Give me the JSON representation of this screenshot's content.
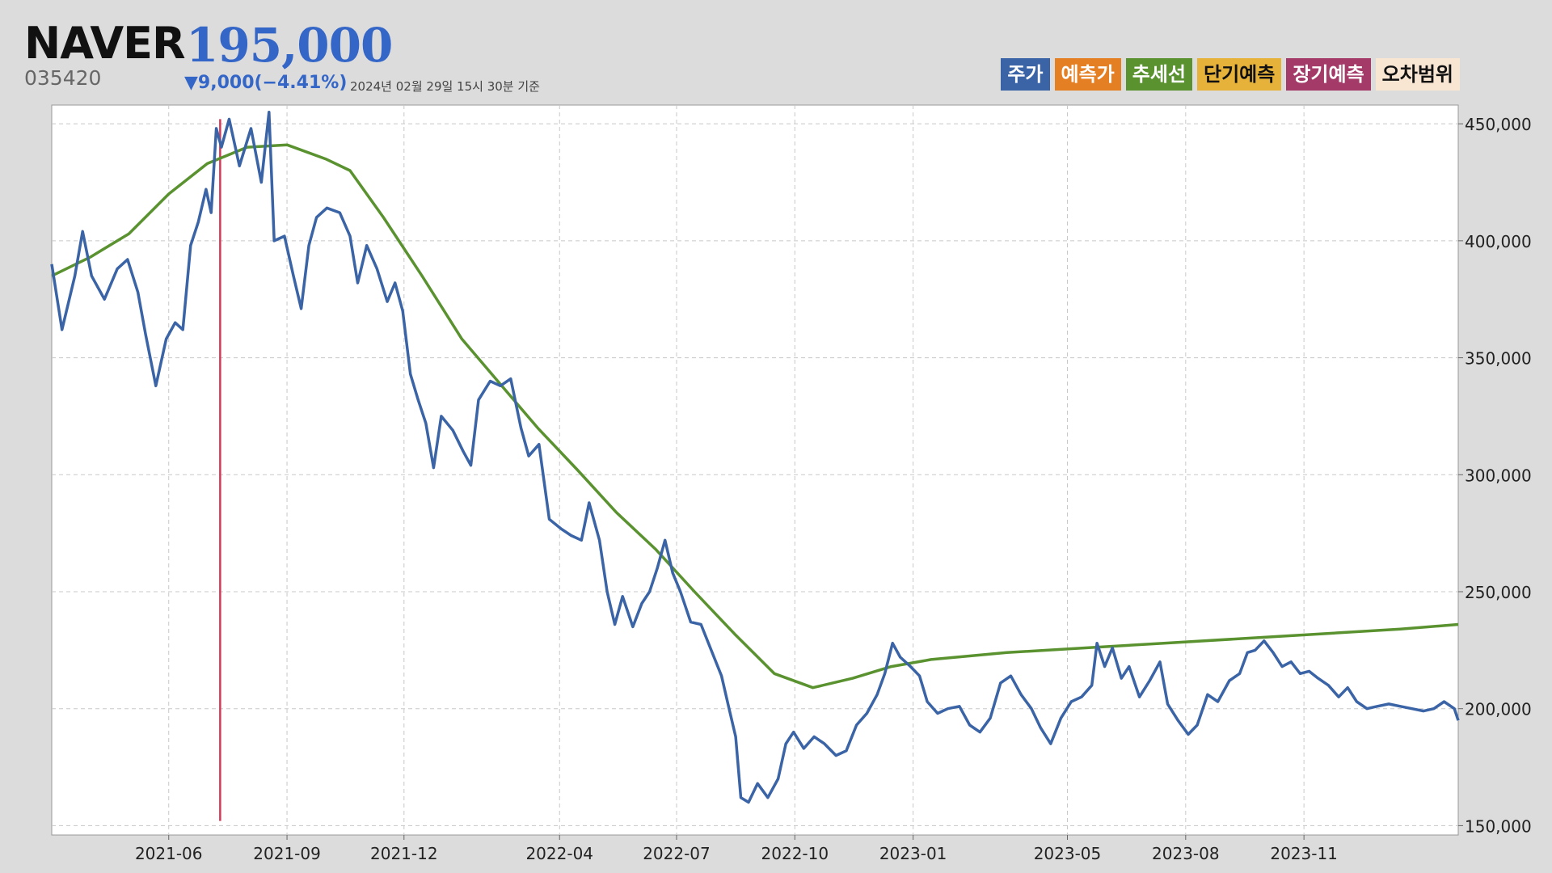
{
  "header": {
    "name": "NAVER",
    "price": "195,000",
    "code": "035420",
    "change": "▼9,000(−4.41%)",
    "timestamp": "2024년 02월 29일 15시 30분 기준"
  },
  "legend": [
    {
      "label": "주가",
      "color": "#3a64a6",
      "text_color": "#ffffff"
    },
    {
      "label": "예측가",
      "color": "#e57f24",
      "text_color": "#ffffff"
    },
    {
      "label": "추세선",
      "color": "#5a9230",
      "text_color": "#ffffff"
    },
    {
      "label": "단기예측",
      "color": "#e6b23a",
      "text_color": "#111111"
    },
    {
      "label": "장기예측",
      "color": "#a33a68",
      "text_color": "#ffffff"
    },
    {
      "label": "오차범위",
      "color": "#f8e6d3",
      "text_color": "#111111"
    }
  ],
  "chart_data": {
    "type": "line",
    "x_ticks": [
      "2021-06",
      "2021-09",
      "2021-12",
      "2022-04",
      "2022-07",
      "2022-10",
      "2023-01",
      "2023-05",
      "2023-08",
      "2023-11"
    ],
    "y_ticks": [
      "450,000",
      "400,000",
      "350,000",
      "300,000",
      "250,000",
      "200,000",
      "150,000"
    ],
    "ylim": [
      146000,
      458000
    ],
    "x_start": "2021-03-02",
    "x_end": "2024-02-29",
    "grid": true,
    "marker_line_date": "2021-07-11",
    "colors": {
      "price": "#3a64a6",
      "trend": "#5a9230",
      "marker": "#d23a5a"
    },
    "series": [
      {
        "name": "주가",
        "points": [
          [
            "2021-03-02",
            390000
          ],
          [
            "2021-03-10",
            362000
          ],
          [
            "2021-03-20",
            385000
          ],
          [
            "2021-03-26",
            404000
          ],
          [
            "2021-04-02",
            385000
          ],
          [
            "2021-04-12",
            375000
          ],
          [
            "2021-04-22",
            388000
          ],
          [
            "2021-04-30",
            392000
          ],
          [
            "2021-05-08",
            378000
          ],
          [
            "2021-05-14",
            360000
          ],
          [
            "2021-05-22",
            338000
          ],
          [
            "2021-05-30",
            358000
          ],
          [
            "2021-06-06",
            365000
          ],
          [
            "2021-06-12",
            362000
          ],
          [
            "2021-06-18",
            398000
          ],
          [
            "2021-06-24",
            408000
          ],
          [
            "2021-06-30",
            422000
          ],
          [
            "2021-07-04",
            412000
          ],
          [
            "2021-07-08",
            448000
          ],
          [
            "2021-07-12",
            440000
          ],
          [
            "2021-07-18",
            452000
          ],
          [
            "2021-07-26",
            432000
          ],
          [
            "2021-08-04",
            448000
          ],
          [
            "2021-08-12",
            425000
          ],
          [
            "2021-08-18",
            455000
          ],
          [
            "2021-08-22",
            400000
          ],
          [
            "2021-08-30",
            402000
          ],
          [
            "2021-09-06",
            385000
          ],
          [
            "2021-09-12",
            371000
          ],
          [
            "2021-09-18",
            398000
          ],
          [
            "2021-09-24",
            410000
          ],
          [
            "2021-10-02",
            414000
          ],
          [
            "2021-10-12",
            412000
          ],
          [
            "2021-10-20",
            402000
          ],
          [
            "2021-10-26",
            382000
          ],
          [
            "2021-11-02",
            398000
          ],
          [
            "2021-11-10",
            388000
          ],
          [
            "2021-11-18",
            374000
          ],
          [
            "2021-11-24",
            382000
          ],
          [
            "2021-11-30",
            370000
          ],
          [
            "2021-12-06",
            343000
          ],
          [
            "2021-12-12",
            332000
          ],
          [
            "2021-12-18",
            322000
          ],
          [
            "2021-12-24",
            303000
          ],
          [
            "2021-12-30",
            325000
          ],
          [
            "2022-01-08",
            319000
          ],
          [
            "2022-01-16",
            310000
          ],
          [
            "2022-01-22",
            304000
          ],
          [
            "2022-01-28",
            332000
          ],
          [
            "2022-02-06",
            340000
          ],
          [
            "2022-02-14",
            338000
          ],
          [
            "2022-02-22",
            341000
          ],
          [
            "2022-03-02",
            320000
          ],
          [
            "2022-03-08",
            308000
          ],
          [
            "2022-03-16",
            313000
          ],
          [
            "2022-03-24",
            281000
          ],
          [
            "2022-04-02",
            277000
          ],
          [
            "2022-04-10",
            274000
          ],
          [
            "2022-04-18",
            272000
          ],
          [
            "2022-04-24",
            288000
          ],
          [
            "2022-05-02",
            272000
          ],
          [
            "2022-05-08",
            250000
          ],
          [
            "2022-05-14",
            236000
          ],
          [
            "2022-05-20",
            248000
          ],
          [
            "2022-05-28",
            235000
          ],
          [
            "2022-06-04",
            245000
          ],
          [
            "2022-06-10",
            250000
          ],
          [
            "2022-06-16",
            260000
          ],
          [
            "2022-06-22",
            272000
          ],
          [
            "2022-06-28",
            258000
          ],
          [
            "2022-07-04",
            250000
          ],
          [
            "2022-07-12",
            237000
          ],
          [
            "2022-07-20",
            236000
          ],
          [
            "2022-07-28",
            225000
          ],
          [
            "2022-08-05",
            214000
          ],
          [
            "2022-08-10",
            202000
          ],
          [
            "2022-08-16",
            188000
          ],
          [
            "2022-08-20",
            162000
          ],
          [
            "2022-08-26",
            160000
          ],
          [
            "2022-09-02",
            168000
          ],
          [
            "2022-09-10",
            162000
          ],
          [
            "2022-09-18",
            170000
          ],
          [
            "2022-09-24",
            185000
          ],
          [
            "2022-09-30",
            190000
          ],
          [
            "2022-10-08",
            183000
          ],
          [
            "2022-10-16",
            188000
          ],
          [
            "2022-10-24",
            185000
          ],
          [
            "2022-11-02",
            180000
          ],
          [
            "2022-11-10",
            182000
          ],
          [
            "2022-11-18",
            193000
          ],
          [
            "2022-11-26",
            198000
          ],
          [
            "2022-12-04",
            206000
          ],
          [
            "2022-12-10",
            215000
          ],
          [
            "2022-12-16",
            228000
          ],
          [
            "2022-12-22",
            222000
          ],
          [
            "2022-12-30",
            218000
          ],
          [
            "2023-01-06",
            214000
          ],
          [
            "2023-01-12",
            203000
          ],
          [
            "2023-01-20",
            198000
          ],
          [
            "2023-01-28",
            200000
          ],
          [
            "2023-02-06",
            201000
          ],
          [
            "2023-02-14",
            193000
          ],
          [
            "2023-02-22",
            190000
          ],
          [
            "2023-03-02",
            196000
          ],
          [
            "2023-03-10",
            211000
          ],
          [
            "2023-03-18",
            214000
          ],
          [
            "2023-03-26",
            206000
          ],
          [
            "2023-04-03",
            200000
          ],
          [
            "2023-04-10",
            192000
          ],
          [
            "2023-04-18",
            185000
          ],
          [
            "2023-04-26",
            196000
          ],
          [
            "2023-05-04",
            203000
          ],
          [
            "2023-05-12",
            205000
          ],
          [
            "2023-05-20",
            210000
          ],
          [
            "2023-05-24",
            228000
          ],
          [
            "2023-05-30",
            218000
          ],
          [
            "2023-06-05",
            226000
          ],
          [
            "2023-06-12",
            213000
          ],
          [
            "2023-06-18",
            218000
          ],
          [
            "2023-06-26",
            205000
          ],
          [
            "2023-07-04",
            212000
          ],
          [
            "2023-07-12",
            220000
          ],
          [
            "2023-07-18",
            202000
          ],
          [
            "2023-07-26",
            195000
          ],
          [
            "2023-08-03",
            189000
          ],
          [
            "2023-08-10",
            193000
          ],
          [
            "2023-08-18",
            206000
          ],
          [
            "2023-08-26",
            203000
          ],
          [
            "2023-09-04",
            212000
          ],
          [
            "2023-09-12",
            215000
          ],
          [
            "2023-09-18",
            224000
          ],
          [
            "2023-09-24",
            225000
          ],
          [
            "2023-10-01",
            229000
          ],
          [
            "2023-10-08",
            224000
          ],
          [
            "2023-10-15",
            218000
          ],
          [
            "2023-10-22",
            220000
          ],
          [
            "2023-10-29",
            215000
          ],
          [
            "2023-11-05",
            216000
          ],
          [
            "2023-11-12",
            213000
          ],
          [
            "2023-11-20",
            210000
          ],
          [
            "2023-11-28",
            205000
          ],
          [
            "2023-12-05",
            209000
          ],
          [
            "2023-12-12",
            203000
          ],
          [
            "2023-12-20",
            200000
          ],
          [
            "2023-12-28",
            201000
          ],
          [
            "2024-01-06",
            202000
          ],
          [
            "2024-01-15",
            201000
          ],
          [
            "2024-01-24",
            200000
          ],
          [
            "2024-02-02",
            199000
          ],
          [
            "2024-02-10",
            200000
          ],
          [
            "2024-02-18",
            203000
          ],
          [
            "2024-02-26",
            200000
          ],
          [
            "2024-02-29",
            195000
          ]
        ]
      },
      {
        "name": "추세선",
        "points": [
          [
            "2021-03-02",
            385000
          ],
          [
            "2021-04-01",
            393000
          ],
          [
            "2021-05-01",
            403000
          ],
          [
            "2021-06-01",
            420000
          ],
          [
            "2021-07-01",
            433000
          ],
          [
            "2021-08-01",
            440000
          ],
          [
            "2021-09-01",
            441000
          ],
          [
            "2021-10-01",
            435000
          ],
          [
            "2021-10-20",
            430000
          ],
          [
            "2021-11-15",
            410000
          ],
          [
            "2021-12-15",
            385000
          ],
          [
            "2022-01-15",
            358000
          ],
          [
            "2022-02-15",
            338000
          ],
          [
            "2022-03-15",
            320000
          ],
          [
            "2022-04-15",
            302000
          ],
          [
            "2022-05-15",
            284000
          ],
          [
            "2022-06-15",
            268000
          ],
          [
            "2022-07-15",
            250000
          ],
          [
            "2022-08-15",
            232000
          ],
          [
            "2022-09-15",
            215000
          ],
          [
            "2022-10-15",
            209000
          ],
          [
            "2022-11-15",
            213000
          ],
          [
            "2022-12-15",
            218000
          ],
          [
            "2023-01-15",
            221000
          ],
          [
            "2023-03-15",
            224000
          ],
          [
            "2023-05-15",
            226000
          ],
          [
            "2023-07-15",
            228000
          ],
          [
            "2023-09-15",
            230000
          ],
          [
            "2023-11-15",
            232000
          ],
          [
            "2024-01-15",
            234000
          ],
          [
            "2024-02-29",
            236000
          ]
        ]
      }
    ]
  }
}
